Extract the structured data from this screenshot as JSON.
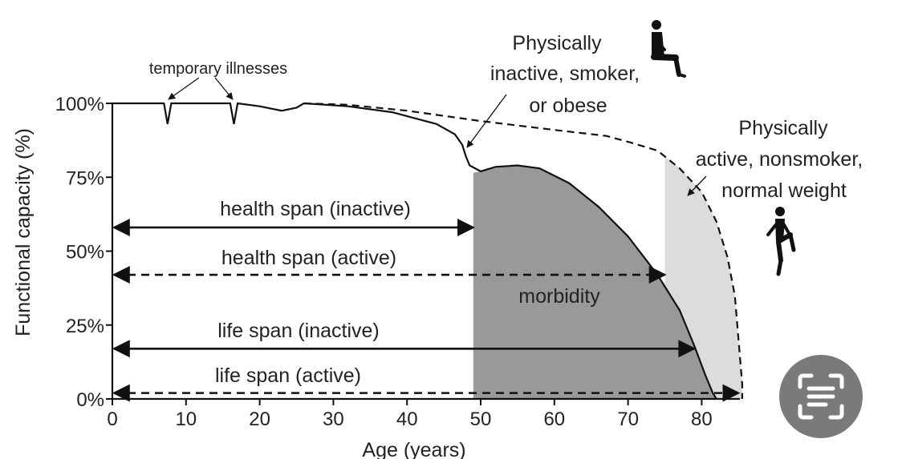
{
  "chart_data": {
    "type": "line",
    "xlabel": "Age (years)",
    "ylabel": "Functional capacity (%)",
    "xlim": [
      0,
      85
    ],
    "ylim": [
      0,
      100
    ],
    "x_ticks": [
      0,
      10,
      20,
      30,
      40,
      50,
      60,
      70,
      80
    ],
    "y_ticks": [
      {
        "value": 0,
        "label": "0%"
      },
      {
        "value": 25,
        "label": "25%"
      },
      {
        "value": 50,
        "label": "50%"
      },
      {
        "value": 75,
        "label": "75%"
      },
      {
        "value": 100,
        "label": "100%"
      }
    ],
    "series": [
      {
        "style": "solid",
        "points": [
          [
            0,
            100
          ],
          [
            7,
            100
          ],
          [
            7.5,
            93
          ],
          [
            8,
            100
          ],
          [
            16,
            100
          ],
          [
            16.5,
            93
          ],
          [
            17,
            100
          ],
          [
            20,
            99
          ],
          [
            23,
            97.5
          ],
          [
            25,
            98.5
          ],
          [
            26,
            100
          ],
          [
            32,
            99
          ],
          [
            38,
            97
          ],
          [
            44,
            93
          ],
          [
            46.5,
            89.5
          ],
          [
            47.5,
            86
          ],
          [
            48,
            82
          ],
          [
            48.5,
            79
          ],
          [
            50,
            77
          ],
          [
            52,
            78.5
          ],
          [
            55,
            79
          ],
          [
            58,
            78
          ],
          [
            62,
            73
          ],
          [
            66,
            65
          ],
          [
            70,
            55
          ],
          [
            74,
            42
          ],
          [
            77,
            30
          ],
          [
            79,
            18
          ],
          [
            80.5,
            8
          ],
          [
            81.5,
            2
          ],
          [
            82,
            0
          ]
        ]
      },
      {
        "style": "dashed",
        "points": [
          [
            26,
            100
          ],
          [
            32,
            99.5
          ],
          [
            40,
            97.5
          ],
          [
            50,
            94
          ],
          [
            60,
            91
          ],
          [
            67,
            89
          ],
          [
            70,
            87
          ],
          [
            74,
            84
          ],
          [
            77,
            78
          ],
          [
            80,
            70
          ],
          [
            82,
            60
          ],
          [
            83.5,
            48
          ],
          [
            84.5,
            35
          ],
          [
            85,
            20
          ],
          [
            85.5,
            5
          ],
          [
            85.5,
            0
          ]
        ]
      }
    ],
    "regions": [
      {
        "label": "morbidity",
        "from_age": 49,
        "to_age": 82,
        "shade": "#999999"
      },
      {
        "label": "",
        "from_age": 75,
        "to_age": 85.5,
        "shade": "#dcdcdc"
      }
    ],
    "spans": [
      {
        "label": "health span (inactive)",
        "from": 0,
        "to": 49,
        "y": 58,
        "style": "solid"
      },
      {
        "label": "health span (active)",
        "from": 0,
        "to": 75,
        "y": 42,
        "style": "dashed"
      },
      {
        "label": "life span (inactive)",
        "from": 0,
        "to": 79,
        "y": 17,
        "style": "solid"
      },
      {
        "label": "life span (active)",
        "from": 0,
        "to": 85,
        "y": 2,
        "style": "dashed"
      }
    ],
    "annotations": {
      "temporary_illnesses": "temporary illnesses",
      "inactive_lines": [
        "Physically",
        "inactive, smoker,",
        "or obese"
      ],
      "active_lines": [
        "Physically",
        "active, nonsmoker,",
        "normal weight"
      ],
      "morbidity": "morbidity"
    },
    "icons": [
      "sitting-person-icon",
      "running-person-icon"
    ]
  },
  "overlay": {
    "scan_button_icon": "scan-text-icon"
  }
}
